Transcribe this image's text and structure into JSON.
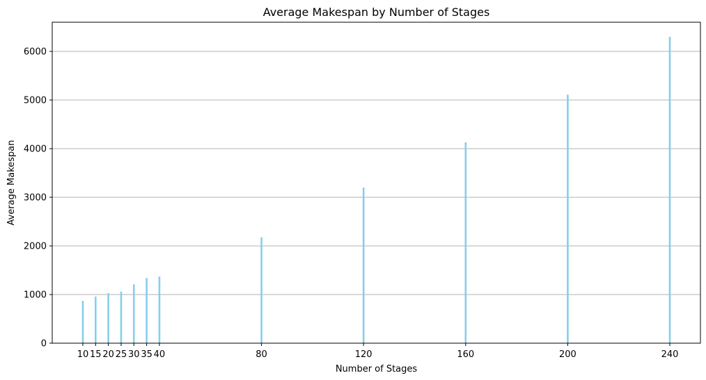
{
  "chart_data": {
    "type": "bar",
    "title": "Average Makespan by Number of Stages",
    "xlabel": "Number of Stages",
    "ylabel": "Average Makespan",
    "x": [
      10,
      15,
      20,
      25,
      30,
      35,
      40,
      80,
      120,
      160,
      200,
      240
    ],
    "values": [
      870,
      960,
      1030,
      1060,
      1210,
      1340,
      1370,
      2180,
      3200,
      4130,
      5110,
      6300
    ],
    "xlim": [
      -2,
      252
    ],
    "ylim": [
      0,
      6600
    ],
    "yticks": [
      0,
      1000,
      2000,
      3000,
      4000,
      5000,
      6000
    ],
    "grid": "horizontal",
    "bar_color": "#87ceeb",
    "grid_color": "#b0b0b0"
  }
}
